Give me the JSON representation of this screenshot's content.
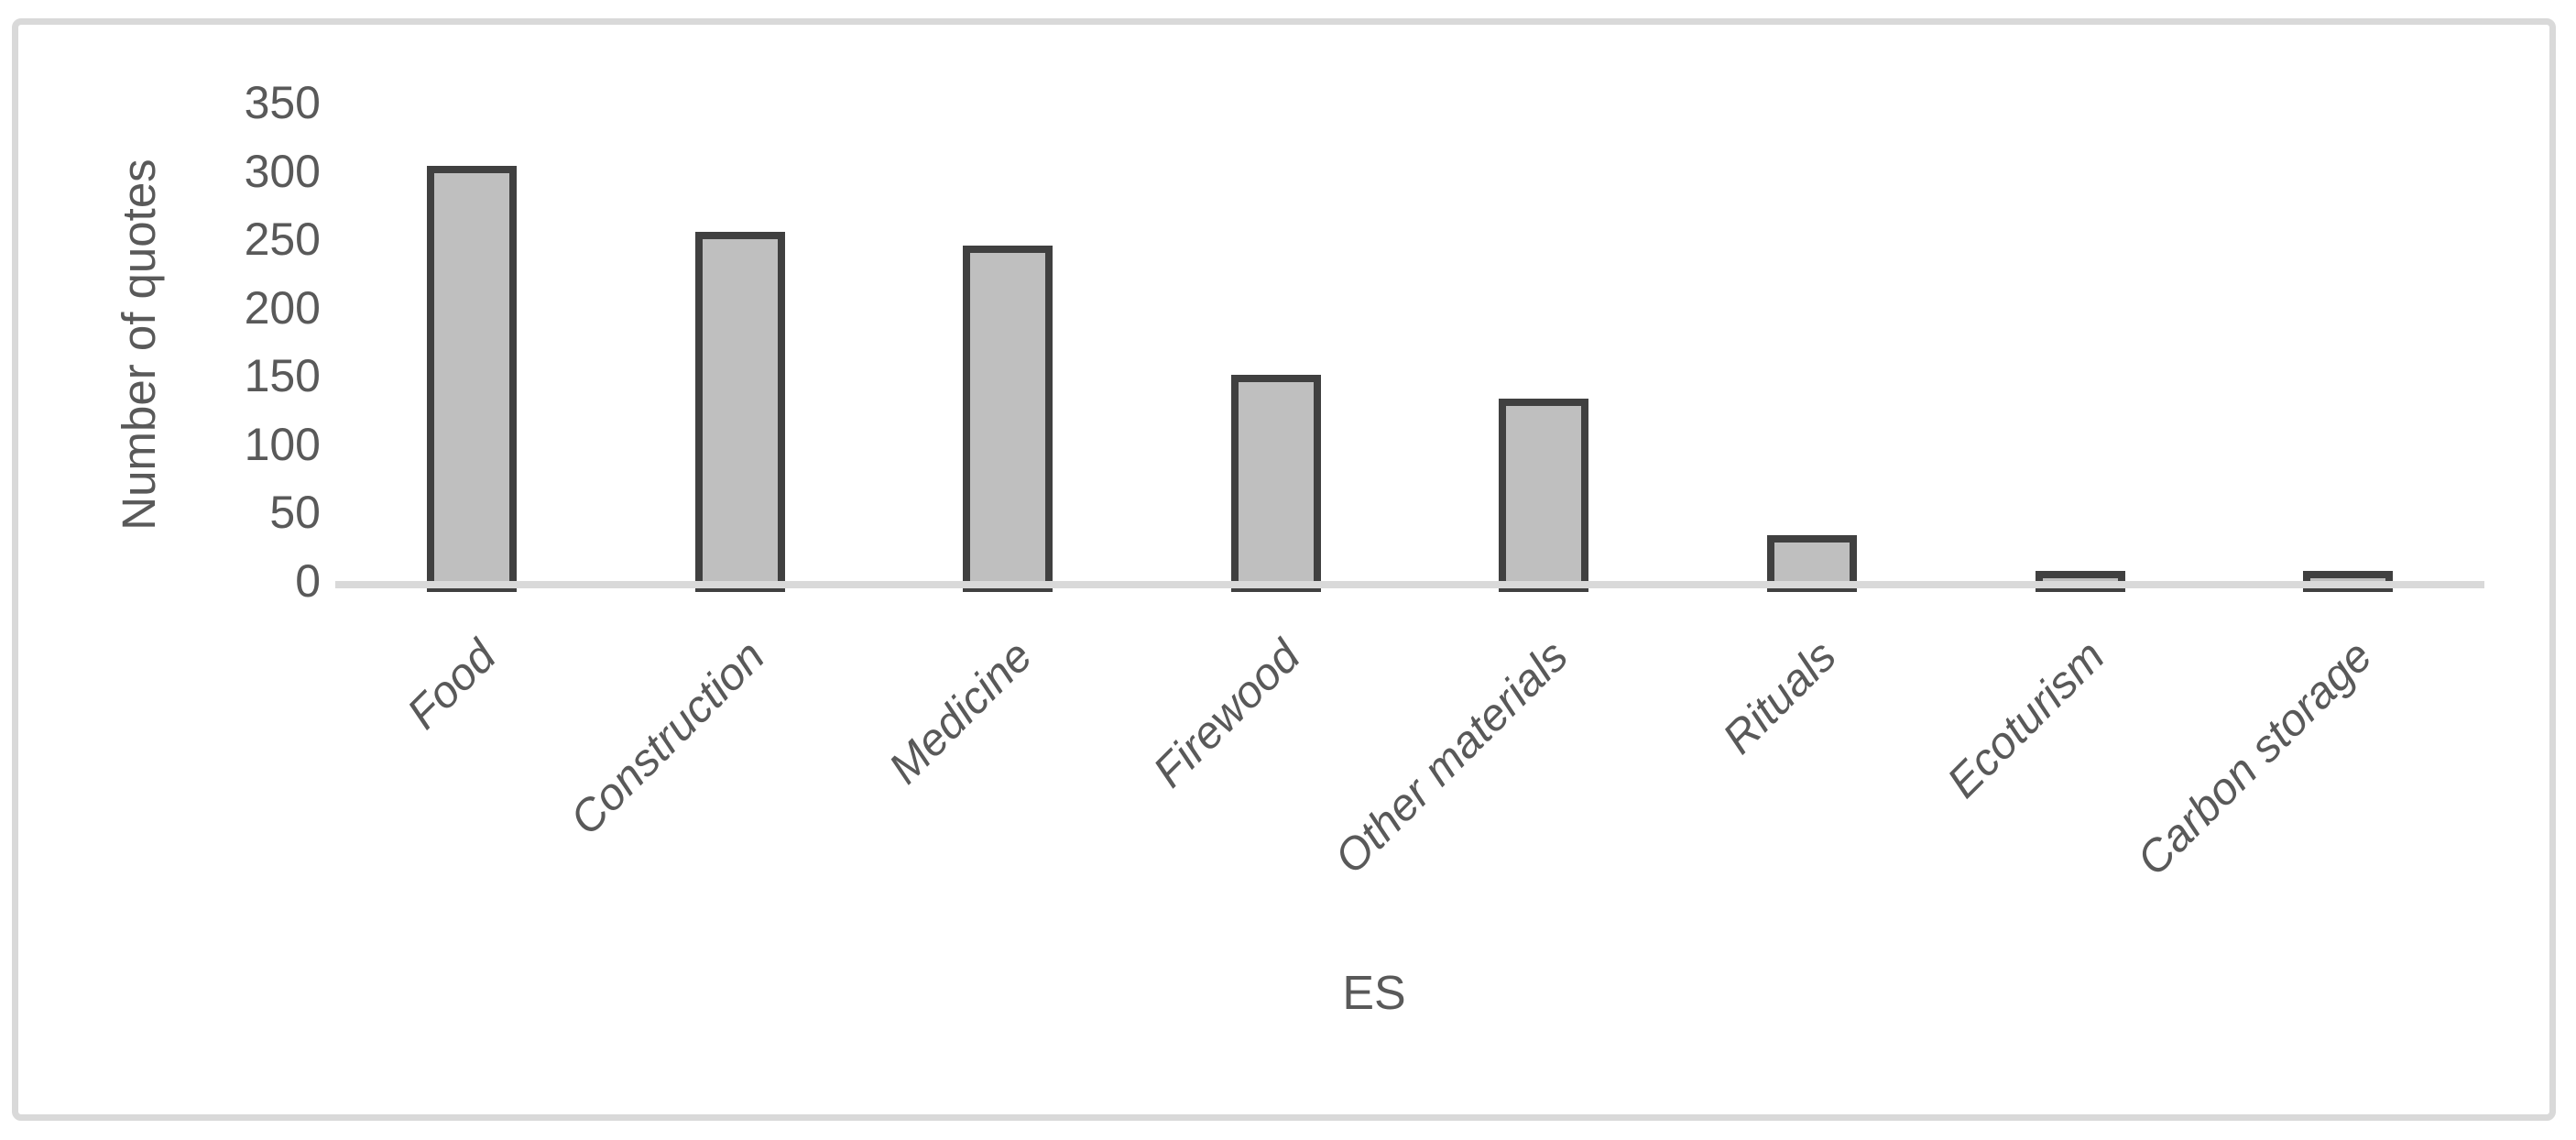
{
  "chart_data": {
    "type": "bar",
    "title": "",
    "xlabel": "ES",
    "ylabel": "Number of quotes",
    "categories": [
      "Food",
      "Construction",
      "Medicine",
      "Firewood",
      "Other materials",
      "Rituals",
      "Ecoturism",
      "Carbon storage"
    ],
    "values": [
      300,
      252,
      242,
      147,
      130,
      30,
      3,
      3
    ],
    "yticks": [
      0,
      50,
      100,
      150,
      200,
      250,
      300,
      350
    ],
    "ylim": [
      0,
      350
    ],
    "grid": false,
    "legend": null,
    "colors": {
      "bar_fill": "#bfbfbf",
      "bar_border": "#404040",
      "axis_line": "#d9d9d9",
      "frame_border": "#d9d9d9",
      "text": "#595959",
      "background": "#ffffff"
    }
  }
}
